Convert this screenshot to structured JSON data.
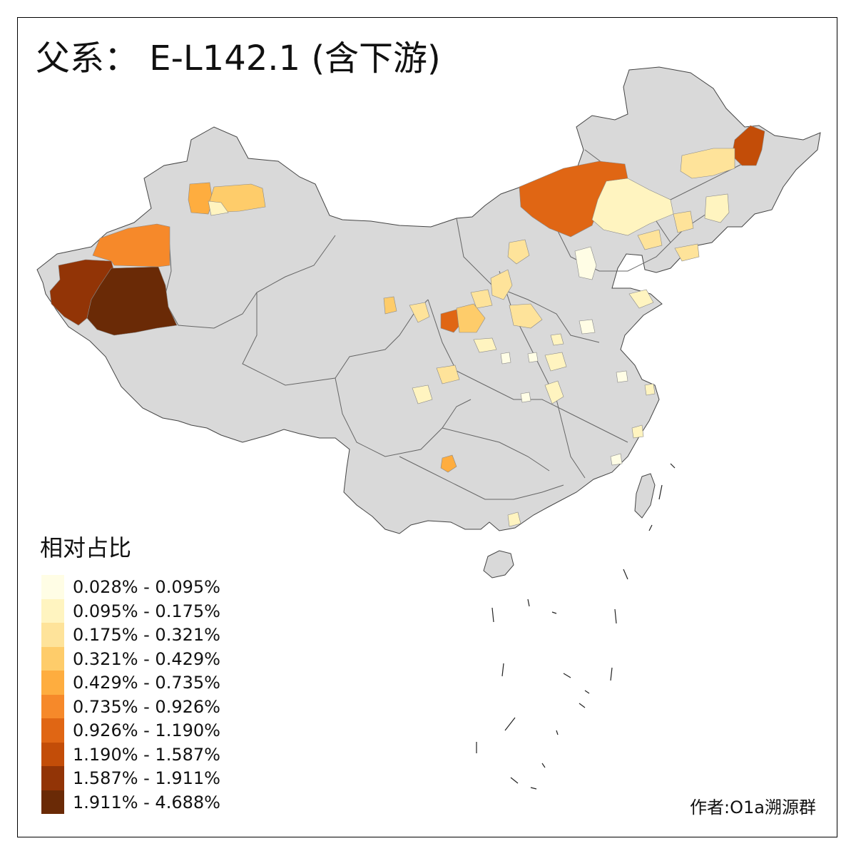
{
  "title": "父系： E-L142.1 (含下游)",
  "legend": {
    "title": "相对占比",
    "bins": [
      {
        "label": "0.028% - 0.095%",
        "color": "#FFFDE5"
      },
      {
        "label": "0.095% - 0.175%",
        "color": "#FFF4C0"
      },
      {
        "label": "0.175% - 0.321%",
        "color": "#FEE39A"
      },
      {
        "label": "0.321% - 0.429%",
        "color": "#FECC6A"
      },
      {
        "label": "0.429% - 0.735%",
        "color": "#FEAD3F"
      },
      {
        "label": "0.735% - 0.926%",
        "color": "#F6892A"
      },
      {
        "label": "0.926% - 1.190%",
        "color": "#E06614"
      },
      {
        "label": "1.190% - 1.587%",
        "color": "#C34D08"
      },
      {
        "label": "1.587% - 1.911%",
        "color": "#923406"
      },
      {
        "label": "1.911% - 4.688%",
        "color": "#6A2A06"
      }
    ]
  },
  "author": "作者:O1a溯源群",
  "colors": {
    "no_data": "#D9D9D9",
    "border": "#555555",
    "frame": "#000000"
  }
}
